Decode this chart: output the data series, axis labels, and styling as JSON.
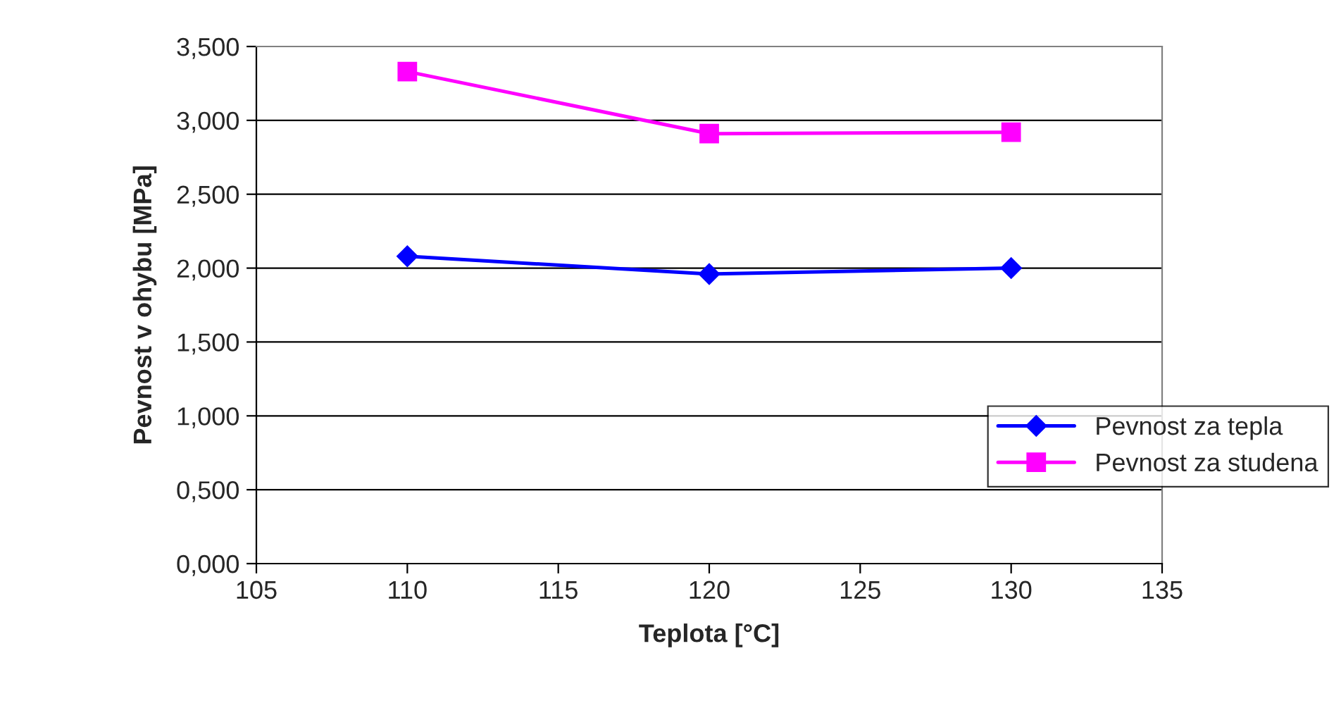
{
  "chart_data": {
    "type": "line",
    "xlabel": "Teplota [°C]",
    "ylabel": "Pevnost v ohybu [MPa]",
    "x": [
      110,
      120,
      130
    ],
    "series": [
      {
        "name": "Pevnost za tepla",
        "color": "#0000ff",
        "marker": "diamond",
        "values": [
          2.08,
          1.96,
          2.0
        ]
      },
      {
        "name": "Pevnost za studena",
        "color": "#ff00ff",
        "marker": "square",
        "values": [
          3.33,
          2.91,
          2.92
        ]
      }
    ],
    "xlim": [
      105,
      135
    ],
    "xticks": [
      105,
      110,
      115,
      120,
      125,
      130,
      135
    ],
    "ylim": [
      0,
      3.5
    ],
    "yticks": [
      {
        "value": 0,
        "label": "0,000"
      },
      {
        "value": 0.5,
        "label": "0,500"
      },
      {
        "value": 1,
        "label": "1,000"
      },
      {
        "value": 1.5,
        "label": "1,500"
      },
      {
        "value": 2,
        "label": "2,000"
      },
      {
        "value": 2.5,
        "label": "2,500"
      },
      {
        "value": 3,
        "label": "3,000"
      },
      {
        "value": 3.5,
        "label": "3,500"
      }
    ],
    "grid": "y",
    "legend": "right",
    "line_style": "solid"
  }
}
